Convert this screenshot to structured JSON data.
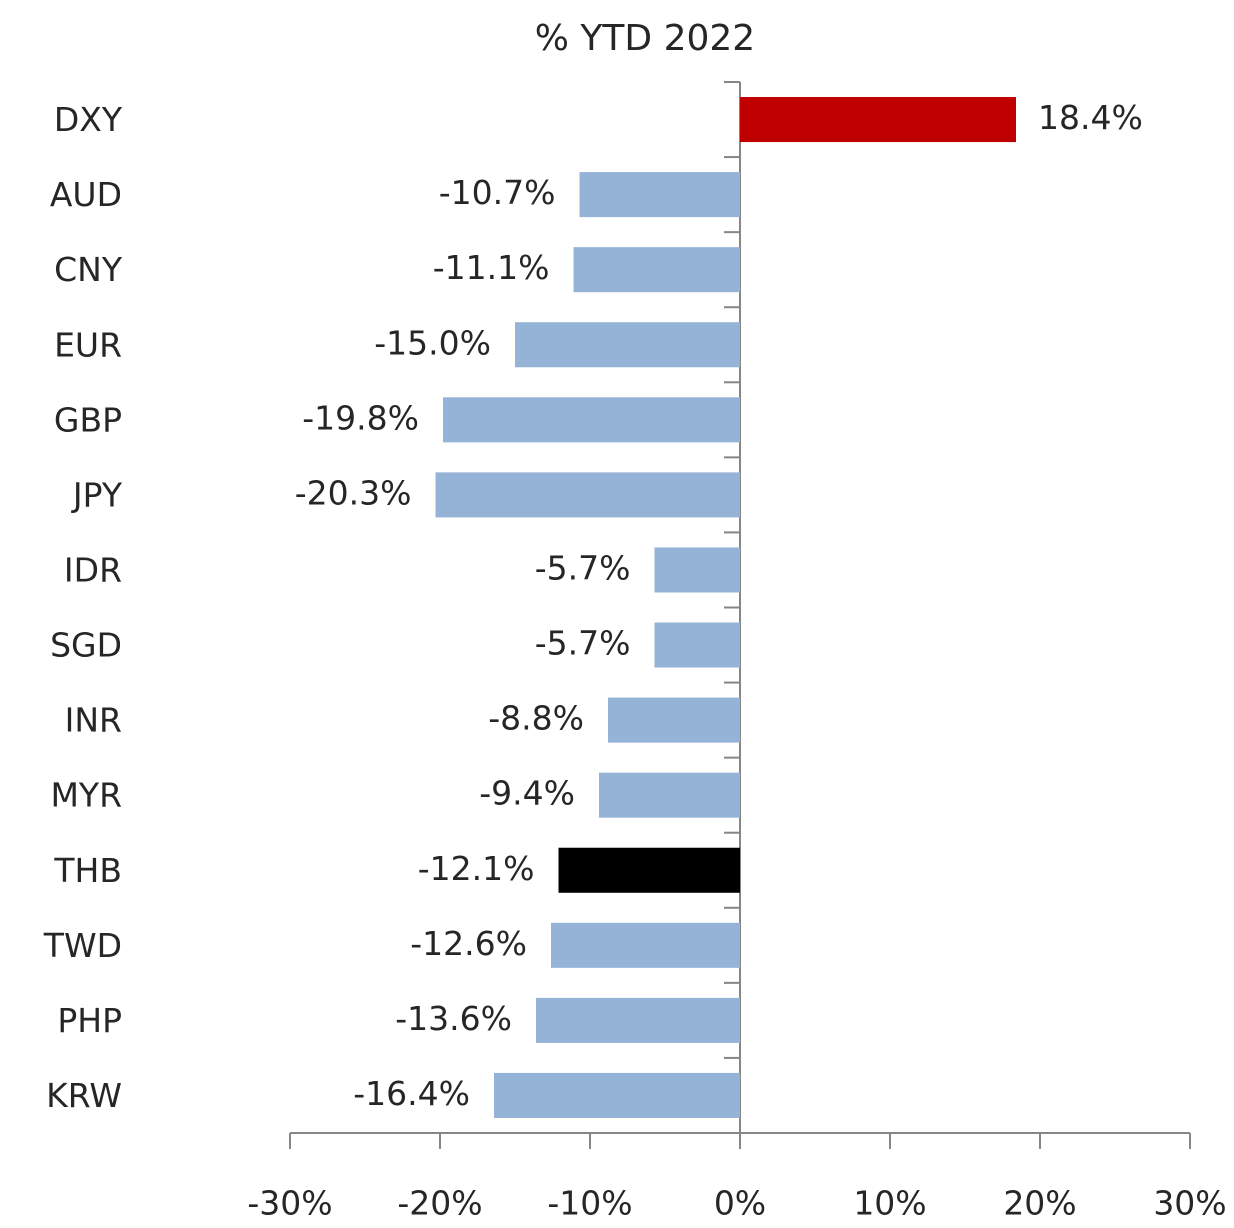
{
  "chart_data": {
    "type": "bar",
    "orientation": "horizontal",
    "title": "% YTD 2022",
    "categories": [
      "DXY",
      "AUD",
      "CNY",
      "EUR",
      "GBP",
      "JPY",
      "IDR",
      "SGD",
      "INR",
      "MYR",
      "THB",
      "TWD",
      "PHP",
      "KRW"
    ],
    "values": [
      18.4,
      -10.7,
      -11.1,
      -15.0,
      -19.8,
      -20.3,
      -5.7,
      -5.7,
      -8.8,
      -9.4,
      -12.1,
      -12.6,
      -13.6,
      -16.4
    ],
    "value_labels": [
      "18.4%",
      "-10.7%",
      "-11.1%",
      "-15.0%",
      "-19.8%",
      "-20.3%",
      "-5.7%",
      "-5.7%",
      "-8.8%",
      "-9.4%",
      "-12.1%",
      "-12.6%",
      "-13.6%",
      "-16.4%"
    ],
    "colors": [
      "#c00000",
      "#95b3d7",
      "#95b3d7",
      "#95b3d7",
      "#95b3d7",
      "#95b3d7",
      "#95b3d7",
      "#95b3d7",
      "#95b3d7",
      "#95b3d7",
      "#000000",
      "#95b3d7",
      "#95b3d7",
      "#95b3d7"
    ],
    "xlim": [
      -30,
      30
    ],
    "xticks": [
      {
        "value": -30,
        "label": "-30%"
      },
      {
        "value": -20,
        "label": "-20%"
      },
      {
        "value": -10,
        "label": "-10%"
      },
      {
        "value": 0,
        "label": "0%"
      },
      {
        "value": 10,
        "label": "10%"
      },
      {
        "value": 20,
        "label": "20%"
      },
      {
        "value": 30,
        "label": "30%"
      }
    ],
    "grid": false
  }
}
